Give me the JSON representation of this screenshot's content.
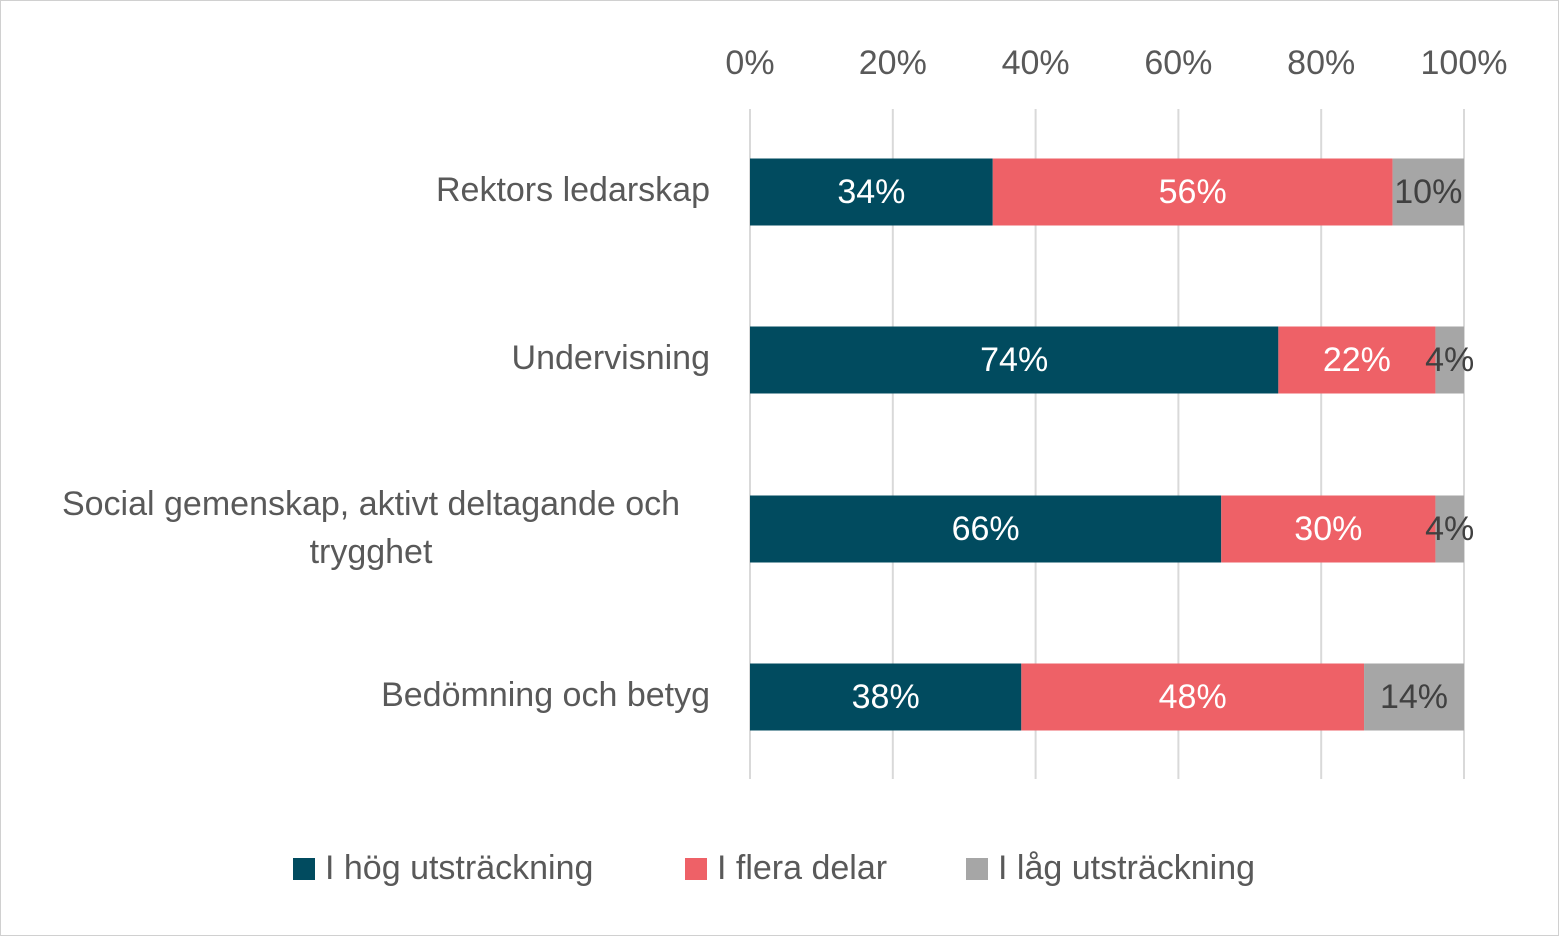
{
  "chart_data": {
    "type": "bar",
    "orientation": "horizontal",
    "stacked": "percent",
    "categories": [
      "Rektors ledarskap",
      "Undervisning",
      "Social gemenskap, aktivt deltagande och trygghet",
      "Bedömning och betyg"
    ],
    "category_lines": [
      [
        "Rektors ledarskap"
      ],
      [
        "Undervisning"
      ],
      [
        "Social gemenskap, aktivt deltagande och",
        "trygghet"
      ],
      [
        "Bedömning och betyg"
      ]
    ],
    "series": [
      {
        "name": "I hög utsträckning",
        "color": "#014B5F",
        "label_color": "#ffffff",
        "values": [
          34,
          74,
          66,
          38
        ],
        "labels": [
          "34%",
          "74%",
          "66%",
          "38%"
        ]
      },
      {
        "name": "I flera delar",
        "color": "#EE6167",
        "label_color": "#ffffff",
        "values": [
          56,
          22,
          30,
          48
        ],
        "labels": [
          "56%",
          "22%",
          "30%",
          "48%"
        ]
      },
      {
        "name": "I låg utsträckning",
        "color": "#A6A6A6",
        "label_color": "#404040",
        "values": [
          10,
          4,
          4,
          14
        ],
        "labels": [
          "10%",
          "4%",
          "4%",
          "14%"
        ]
      }
    ],
    "xlim": [
      0,
      100
    ],
    "x_ticks": [
      "0%",
      "20%",
      "40%",
      "60%",
      "80%",
      "100%"
    ],
    "x_axis_position": "top",
    "grid": true,
    "legend_position": "bottom"
  }
}
